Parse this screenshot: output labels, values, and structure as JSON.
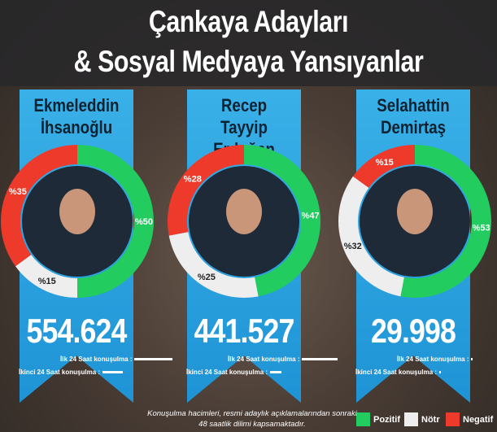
{
  "title_line1": "Çankaya Adayları",
  "title_line2": "& Sosyal Medyaya Yansıyanlar",
  "colors": {
    "pozitif": "#22cc5e",
    "notr": "#eeeeee",
    "negatif": "#ee3a2a",
    "ribbon": "#2ea4e0"
  },
  "chart_data": {
    "type": "pie",
    "variant": "donut",
    "charts": [
      {
        "name_line1": "Ekmeleddin",
        "name_line2": "İhsanoğlu",
        "total": "554.624",
        "slices": [
          {
            "label": "Pozitif",
            "value": 50,
            "text": "%50"
          },
          {
            "label": "Nötr",
            "value": 15,
            "text": "%15"
          },
          {
            "label": "Negatif",
            "value": 35,
            "text": "%35"
          }
        ],
        "bar_ilk_24": 1.0,
        "bar_ikinci_24": 0.53
      },
      {
        "name_line1": "Recep Tayyip",
        "name_line2": "Erdoğan",
        "total": "441.527",
        "slices": [
          {
            "label": "Pozitif",
            "value": 47,
            "text": "%47"
          },
          {
            "label": "Nötr",
            "value": 25,
            "text": "%25"
          },
          {
            "label": "Negatif",
            "value": 28,
            "text": "%28"
          }
        ],
        "bar_ilk_24": 0.92,
        "bar_ikinci_24": 0.3
      },
      {
        "name_line1": "Selahattin",
        "name_line2": "Demirtaş",
        "total": "29.998",
        "slices": [
          {
            "label": "Pozitif",
            "value": 53,
            "text": "%53"
          },
          {
            "label": "Nötr",
            "value": 32,
            "text": "%32"
          },
          {
            "label": "Negatif",
            "value": 15,
            "text": "%15"
          }
        ],
        "bar_ilk_24": 0.03,
        "bar_ikinci_24": 0.03
      }
    ]
  },
  "labels": {
    "ilk": "İlk 24 Saat konuşulma :",
    "ikinci": "İkinci 24 Saat konuşulma :"
  },
  "note": "Konuşulma hacimleri, resmi adaylık açıklamalarından sonraki 48 saatlik dilimi kapsamaktadır.",
  "legend": [
    {
      "label": "Pozitif"
    },
    {
      "label": "Nötr"
    },
    {
      "label": "Negatif"
    }
  ]
}
